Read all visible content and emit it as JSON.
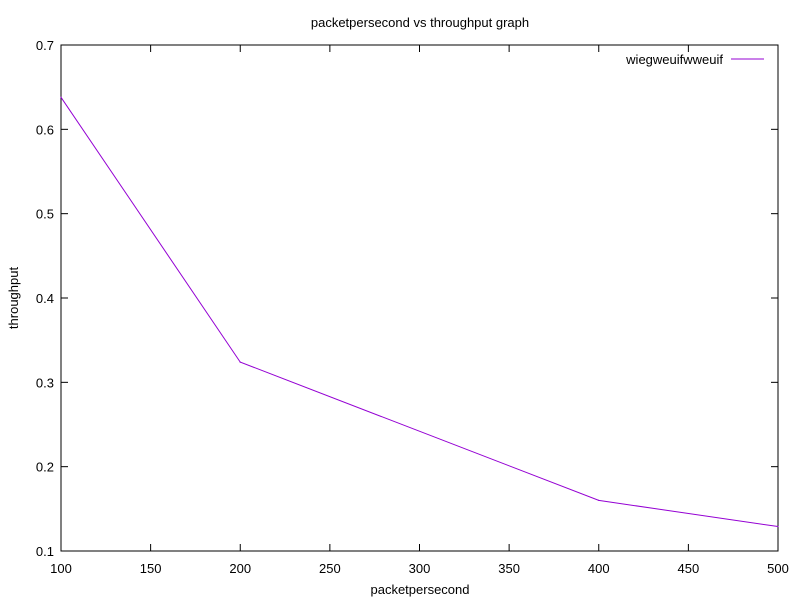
{
  "chart_data": {
    "type": "line",
    "title": "packetpersecond vs throughput graph",
    "xlabel": "packetpersecond",
    "ylabel": "throughput",
    "xlim": [
      100,
      500
    ],
    "ylim": [
      0.1,
      0.7
    ],
    "xticks": [
      100,
      150,
      200,
      250,
      300,
      350,
      400,
      450,
      500
    ],
    "yticks": [
      0.1,
      0.2,
      0.3,
      0.4,
      0.5,
      0.6,
      0.7
    ],
    "xtick_labels": [
      "100",
      "150",
      "200",
      "250",
      "300",
      "350",
      "400",
      "450",
      "500"
    ],
    "ytick_labels": [
      "0.1",
      "0.2",
      "0.3",
      "0.4",
      "0.5",
      "0.6",
      "0.7"
    ],
    "grid": false,
    "legend_position": "top-right",
    "series": [
      {
        "name": "wiegweuifwweuif",
        "color": "#9400d3",
        "x": [
          100,
          200,
          400,
          500
        ],
        "y": [
          0.638,
          0.324,
          0.16,
          0.129
        ]
      }
    ]
  }
}
